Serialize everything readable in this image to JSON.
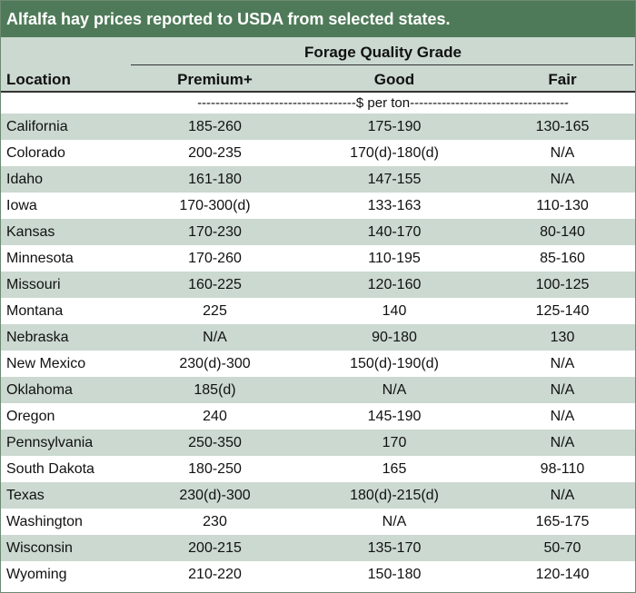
{
  "title": "Alfalfa hay prices reported to USDA from selected states.",
  "header": {
    "group": "Forage Quality Grade",
    "location": "Location",
    "columns": [
      "Premium+",
      "Good",
      "Fair"
    ],
    "unit": "-----------------------------------$ per ton-----------------------------------"
  },
  "rows": [
    {
      "location": "California",
      "premium": "185-260",
      "good": "175-190",
      "fair": "130-165"
    },
    {
      "location": "Colorado",
      "premium": "200-235",
      "good": "170(d)-180(d)",
      "fair": "N/A"
    },
    {
      "location": "Idaho",
      "premium": "161-180",
      "good": "147-155",
      "fair": "N/A"
    },
    {
      "location": "Iowa",
      "premium": "170-300(d)",
      "good": "133-163",
      "fair": "110-130"
    },
    {
      "location": "Kansas",
      "premium": "170-230",
      "good": "140-170",
      "fair": "80-140"
    },
    {
      "location": "Minnesota",
      "premium": "170-260",
      "good": "110-195",
      "fair": "85-160"
    },
    {
      "location": "Missouri",
      "premium": "160-225",
      "good": "120-160",
      "fair": "100-125"
    },
    {
      "location": "Montana",
      "premium": "225",
      "good": "140",
      "fair": "125-140"
    },
    {
      "location": "Nebraska",
      "premium": "N/A",
      "good": "90-180",
      "fair": "130"
    },
    {
      "location": "New Mexico",
      "premium": "230(d)-300",
      "good": "150(d)-190(d)",
      "fair": "N/A"
    },
    {
      "location": "Oklahoma",
      "premium": "185(d)",
      "good": "N/A",
      "fair": "N/A"
    },
    {
      "location": "Oregon",
      "premium": "240",
      "good": "145-190",
      "fair": "N/A"
    },
    {
      "location": "Pennsylvania",
      "premium": "250-350",
      "good": "170",
      "fair": "N/A"
    },
    {
      "location": "South Dakota",
      "premium": "180-250",
      "good": "165",
      "fair": "98-110"
    },
    {
      "location": "Texas",
      "premium": "230(d)-300",
      "good": "180(d)-215(d)",
      "fair": "N/A"
    },
    {
      "location": "Washington",
      "premium": "230",
      "good": "N/A",
      "fair": "165-175"
    },
    {
      "location": "Wisconsin",
      "premium": "200-215",
      "good": "135-170",
      "fair": "50-70"
    },
    {
      "location": "Wyoming",
      "premium": "210-220",
      "good": "150-180",
      "fair": "120-140"
    }
  ]
}
